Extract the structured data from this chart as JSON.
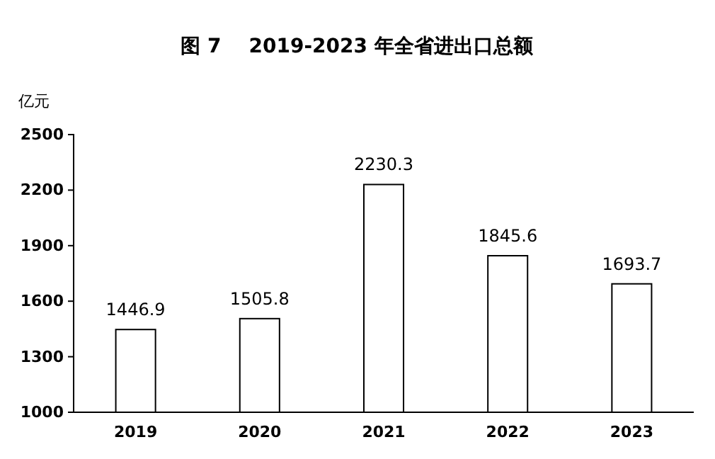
{
  "chart_data": {
    "type": "bar",
    "title": "图 7    2019-2023 年全省进出口总额",
    "ylabel": "亿元",
    "categories": [
      "2019",
      "2020",
      "2021",
      "2022",
      "2023"
    ],
    "values": [
      1446.9,
      1505.8,
      2230.3,
      1845.6,
      1693.7
    ],
    "color": "#ffffff",
    "data_labels": true,
    "ylim": [
      1000,
      2500
    ],
    "yticks": [
      1000,
      1300,
      1600,
      1900,
      2200,
      2500
    ],
    "grid": false
  }
}
